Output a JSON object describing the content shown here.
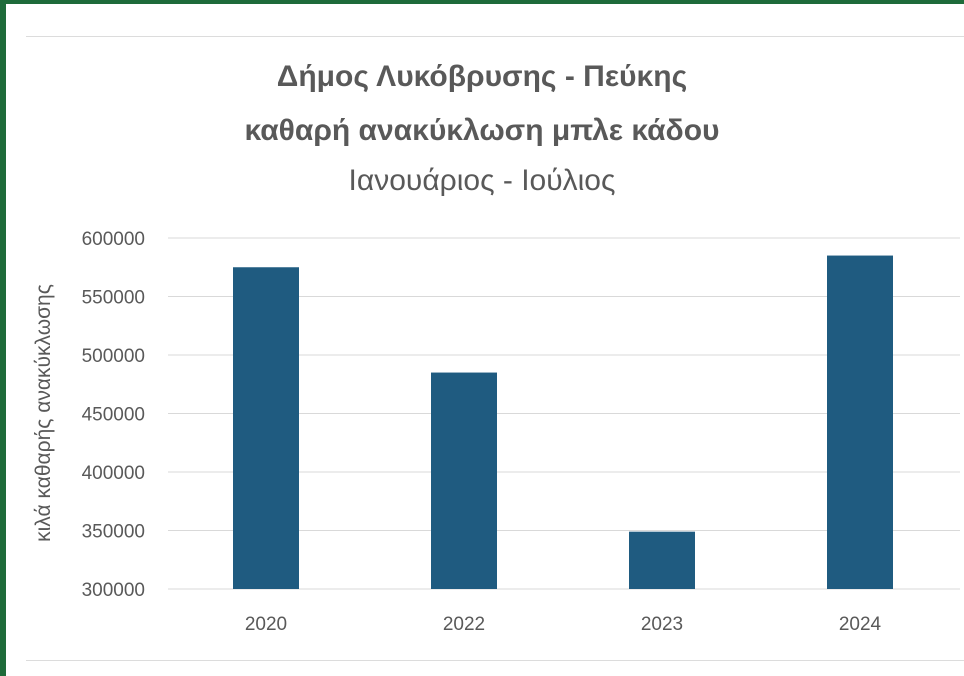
{
  "chart_data": {
    "type": "bar",
    "title": "Δήμος Λυκόβρυσης - Πεύκης",
    "title_line2": "καθαρή ανακύκλωση μπλε κάδου",
    "subtitle": "Ιανουάριος - Ιούλιος",
    "ylabel": "κιλά καθαρής ανακύκλωσης",
    "xlabel": "",
    "categories": [
      "2020",
      "2022",
      "2023",
      "2024"
    ],
    "values": [
      575000,
      485000,
      349000,
      585000
    ],
    "ylim": [
      300000,
      600000
    ],
    "yticks": [
      "600000",
      "550000",
      "500000",
      "450000",
      "400000",
      "350000",
      "300000"
    ],
    "grid": true,
    "legend": "none",
    "bar_color": "#1f5b80"
  }
}
